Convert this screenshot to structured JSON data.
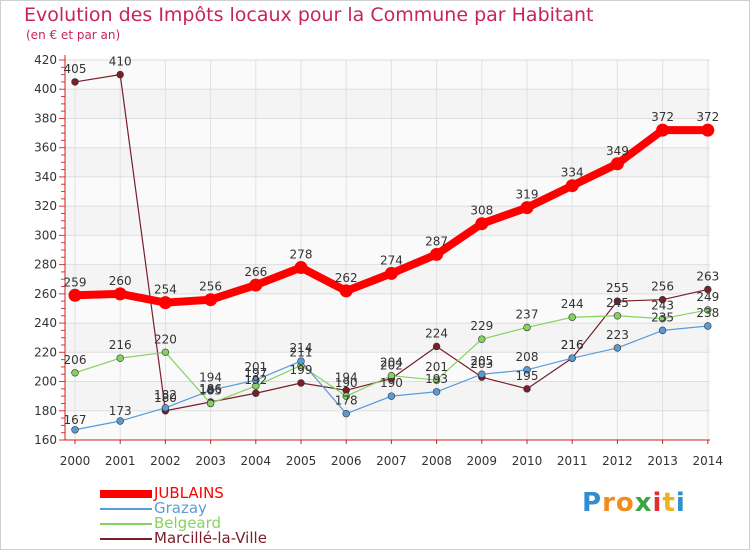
{
  "header": {
    "title": "Evolution des Impôts locaux pour la Commune par Habitant",
    "subtitle": "(en € et par an)"
  },
  "logo": {
    "letters": [
      "P",
      "r",
      "o",
      "x",
      "i",
      "t",
      "i"
    ],
    "colors": [
      "#2f8fd0",
      "#f28c1e",
      "#f28c1e",
      "#3aa541",
      "#e2312d",
      "#f2b21e",
      "#2f8fd0"
    ]
  },
  "chart_data": {
    "type": "line",
    "title": "Evolution des Impôts locaux pour la Commune par Habitant",
    "subtitle": "(en € et par an)",
    "xlabel": "",
    "ylabel": "",
    "categories": [
      "2000",
      "2001",
      "2002",
      "2003",
      "2004",
      "2005",
      "2006",
      "2007",
      "2008",
      "2009",
      "2010",
      "2011",
      "2012",
      "2013",
      "2014"
    ],
    "ylim": [
      160,
      420
    ],
    "yticks": [
      160,
      180,
      200,
      220,
      240,
      260,
      280,
      300,
      320,
      340,
      360,
      380,
      400,
      420
    ],
    "grid": true,
    "legend_position": "bottom-left",
    "series": [
      {
        "name": "JUBLAINS",
        "color": "#ff0000",
        "text_color": "#ff0000",
        "values": [
          259,
          260,
          254,
          256,
          266,
          278,
          262,
          274,
          287,
          308,
          319,
          334,
          349,
          372,
          372
        ]
      },
      {
        "name": "Grazay",
        "color": "#5b9bd5",
        "text_color": "#5b9bd5",
        "values": [
          167,
          173,
          182,
          194,
          201,
          214,
          178,
          190,
          193,
          205,
          208,
          216,
          223,
          235,
          238
        ]
      },
      {
        "name": "Belgeard",
        "color": "#85d35f",
        "text_color": "#85d35f",
        "values": [
          206,
          216,
          220,
          185,
          197,
          211,
          190,
          204,
          201,
          229,
          237,
          244,
          245,
          243,
          249
        ]
      },
      {
        "name": "Marcillé-la-Ville",
        "color": "#7a1e2a",
        "text_color": "#7a1e2a",
        "values": [
          405,
          410,
          180,
          186,
          192,
          199,
          194,
          202,
          224,
          203,
          195,
          216,
          255,
          256,
          263
        ]
      }
    ]
  }
}
